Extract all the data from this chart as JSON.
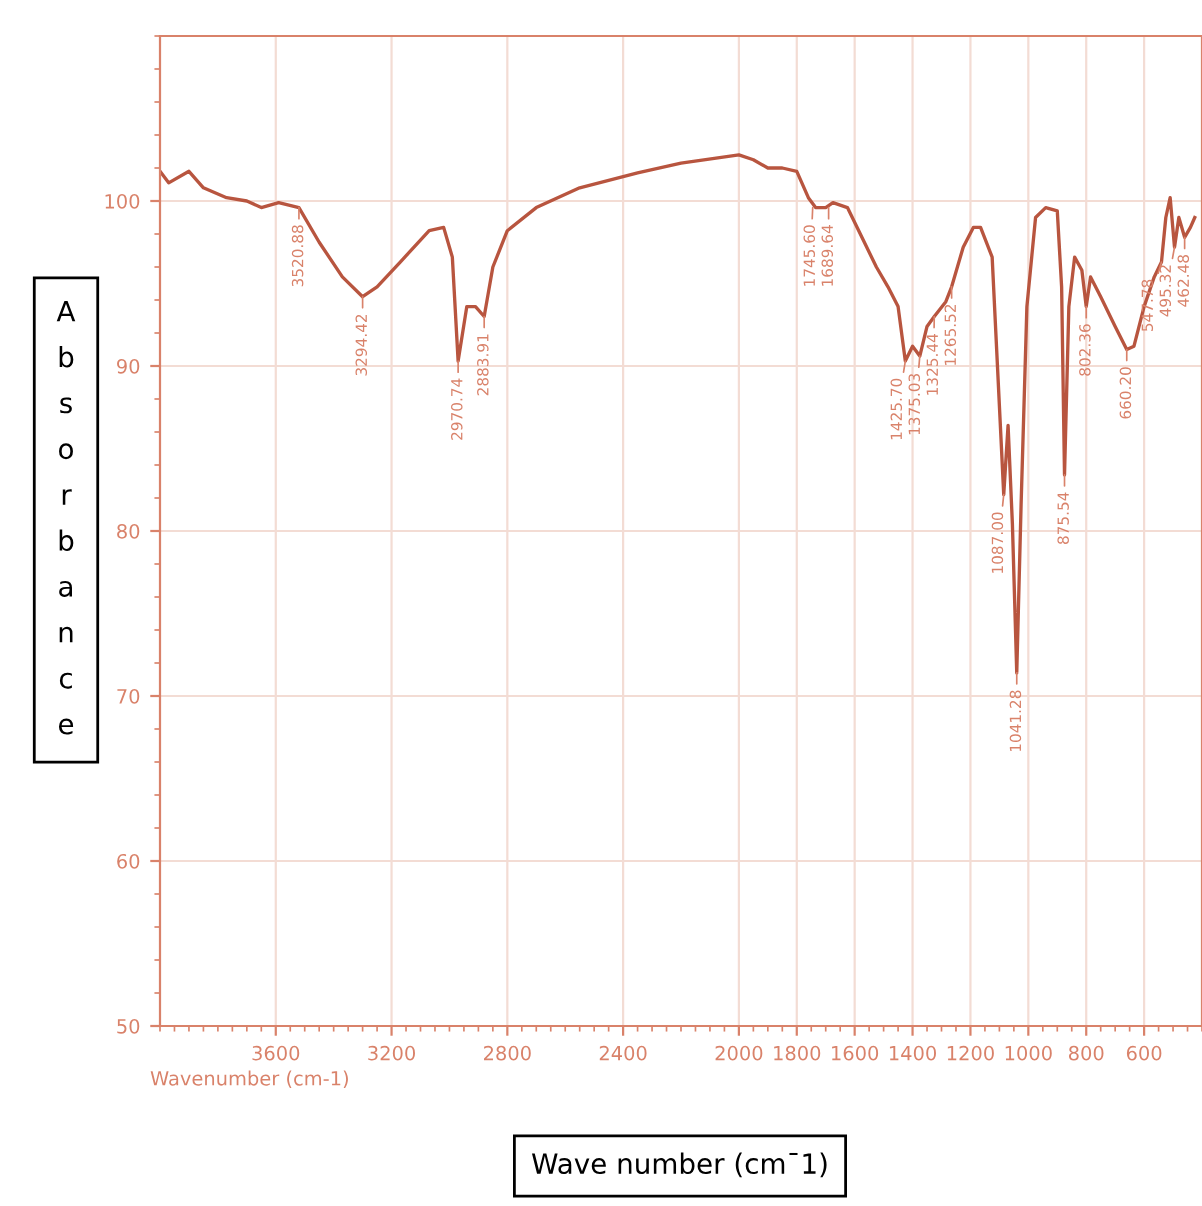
{
  "chart_data": {
    "type": "line",
    "xlabel": "Wave number (cm¯1)",
    "ylabel": "Absorbance",
    "x": [
      4000,
      3970,
      3900,
      3850,
      3770,
      3700,
      3650,
      3590,
      3520,
      3450,
      3370,
      3300,
      3250,
      3170,
      3070,
      3020,
      2990,
      2970,
      2940,
      2910,
      2880,
      2850,
      2800,
      2700,
      2550,
      2350,
      2200,
      2000,
      1950,
      1900,
      1850,
      1800,
      1760,
      1735,
      1700,
      1675,
      1625,
      1575,
      1525,
      1485,
      1450,
      1425,
      1400,
      1375,
      1350,
      1325,
      1285,
      1265,
      1225,
      1190,
      1165,
      1125,
      1100,
      1085,
      1070,
      1055,
      1040,
      1025,
      1005,
      975,
      940,
      900,
      885,
      875,
      860,
      840,
      815,
      800,
      785,
      750,
      700,
      660,
      635,
      600,
      565,
      540,
      525,
      510,
      495,
      480,
      460,
      440,
      425
    ],
    "series": [
      {
        "color": "#b8553f",
        "values": [
          101.8,
          101.1,
          101.8,
          100.8,
          100.2,
          100.0,
          99.6,
          99.9,
          99.6,
          97.5,
          95.4,
          94.2,
          94.8,
          96.3,
          98.2,
          98.4,
          96.6,
          90.3,
          93.6,
          93.6,
          93.0,
          96.0,
          98.2,
          99.6,
          100.8,
          101.7,
          102.3,
          102.8,
          102.5,
          102.0,
          102.0,
          101.8,
          100.2,
          99.6,
          99.6,
          99.9,
          99.6,
          97.8,
          96.0,
          94.8,
          93.6,
          90.3,
          91.2,
          90.6,
          92.4,
          93.0,
          93.9,
          94.8,
          97.2,
          98.4,
          98.4,
          96.6,
          87.6,
          82.2,
          86.4,
          80.4,
          71.4,
          81.6,
          93.6,
          99.0,
          99.6,
          99.4,
          94.8,
          83.4,
          93.6,
          96.6,
          95.8,
          93.6,
          95.4,
          94.2,
          92.4,
          91.0,
          91.2,
          93.6,
          95.4,
          96.3,
          99.0,
          100.2,
          97.2,
          99.0,
          97.8,
          98.4,
          99.0
        ]
      }
    ],
    "xlim": [
      4000,
      400
    ],
    "xticks": [
      3600,
      3200,
      2800,
      2400,
      2000,
      1800,
      1600,
      1400,
      1200,
      1000,
      800,
      600
    ],
    "ylim": [
      50,
      110
    ],
    "yticks": [
      50,
      60,
      70,
      80,
      90,
      100
    ],
    "grid": true,
    "line_style": "solid",
    "marker": "none",
    "annotations": [
      "Wavenumber (cm-1)",
      {
        "text": "3520.88",
        "x": 3520,
        "y": 99.6
      },
      {
        "text": "3294.42",
        "x": 3300,
        "y": 94.2
      },
      {
        "text": "2970.74",
        "x": 2970,
        "y": 90.3
      },
      {
        "text": "2883.91",
        "x": 2880,
        "y": 93.0
      },
      {
        "text": "1745.60",
        "x": 1745,
        "y": 99.6
      },
      {
        "text": "1689.64",
        "x": 1690,
        "y": 99.6
      },
      {
        "text": "1425.70",
        "x": 1425,
        "y": 90.3
      },
      {
        "text": "1375.03",
        "x": 1375,
        "y": 90.6
      },
      {
        "text": "1325.44",
        "x": 1325,
        "y": 93.0
      },
      {
        "text": "1265.52",
        "x": 1265,
        "y": 94.8
      },
      {
        "text": "1087.00",
        "x": 1085,
        "y": 82.2
      },
      {
        "text": "1041.28",
        "x": 1040,
        "y": 71.4
      },
      {
        "text": "875.54",
        "x": 875,
        "y": 83.4
      },
      {
        "text": "802.36",
        "x": 800,
        "y": 93.6
      },
      {
        "text": "660.20",
        "x": 660,
        "y": 91.0
      },
      {
        "text": "547.78",
        "x": 540,
        "y": 96.3
      },
      {
        "text": "495.32",
        "x": 495,
        "y": 97.2
      },
      {
        "text": "462.48",
        "x": 460,
        "y": 97.8
      }
    ]
  }
}
